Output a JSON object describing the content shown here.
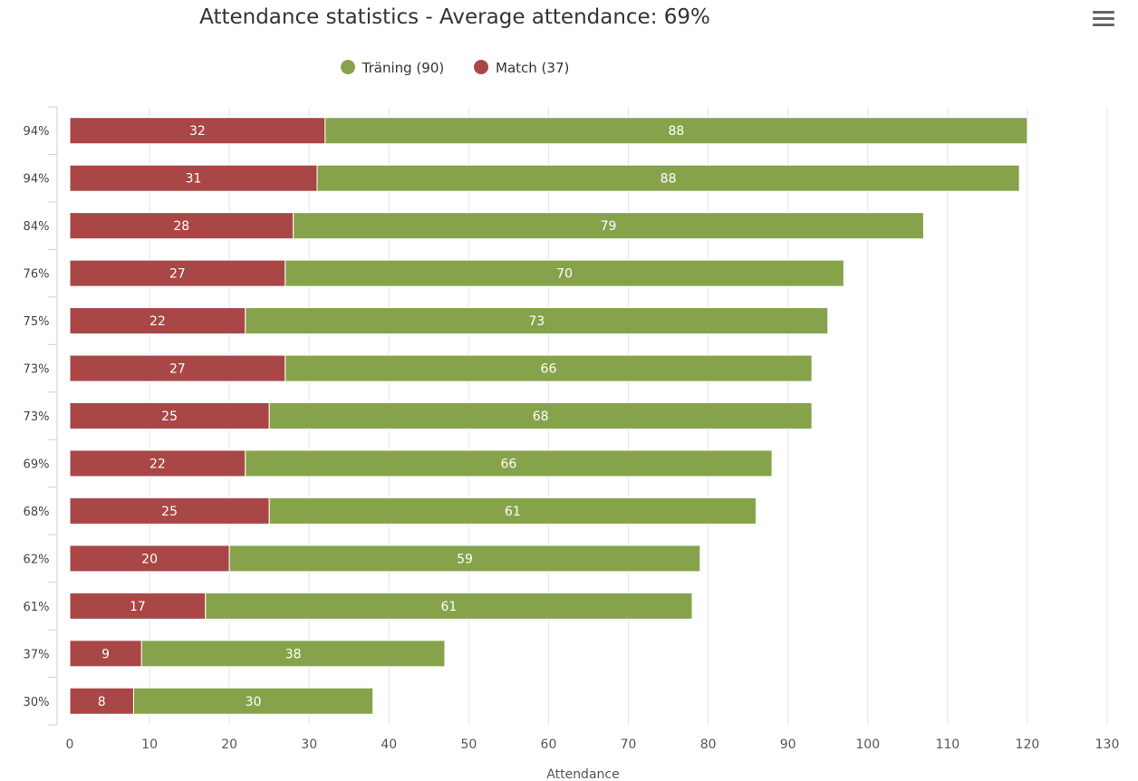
{
  "colors": {
    "training": "#86a34c",
    "match": "#a94646",
    "grid": "#e3e6ec",
    "axis": "#c8d1e0"
  },
  "menu": {
    "icon": "hamburger-menu-icon"
  },
  "chart_data": {
    "type": "bar",
    "orientation": "horizontal",
    "stacked": true,
    "title": "Attendance statistics - Average attendance: 69%",
    "xlabel": "Attendance",
    "ylabel": "",
    "xlim": [
      0,
      130
    ],
    "x_ticks": [
      0,
      10,
      20,
      30,
      40,
      50,
      60,
      70,
      80,
      90,
      100,
      110,
      120,
      130
    ],
    "categories": [
      "94%",
      "94%",
      "84%",
      "76%",
      "75%",
      "73%",
      "73%",
      "69%",
      "68%",
      "62%",
      "61%",
      "37%",
      "30%"
    ],
    "series": [
      {
        "name": "Match",
        "legend_label": "Match (37)",
        "color": "#a94646",
        "values": [
          32,
          31,
          28,
          27,
          22,
          27,
          25,
          22,
          25,
          20,
          17,
          9,
          8
        ]
      },
      {
        "name": "Träning",
        "legend_label": "Träning (90)",
        "color": "#86a34c",
        "values": [
          88,
          88,
          79,
          70,
          73,
          66,
          68,
          66,
          61,
          59,
          61,
          38,
          30
        ]
      }
    ],
    "legend_order": [
      "Träning (90)",
      "Match (37)"
    ],
    "legend_position": "top-center",
    "grid": true,
    "data_labels": true
  }
}
